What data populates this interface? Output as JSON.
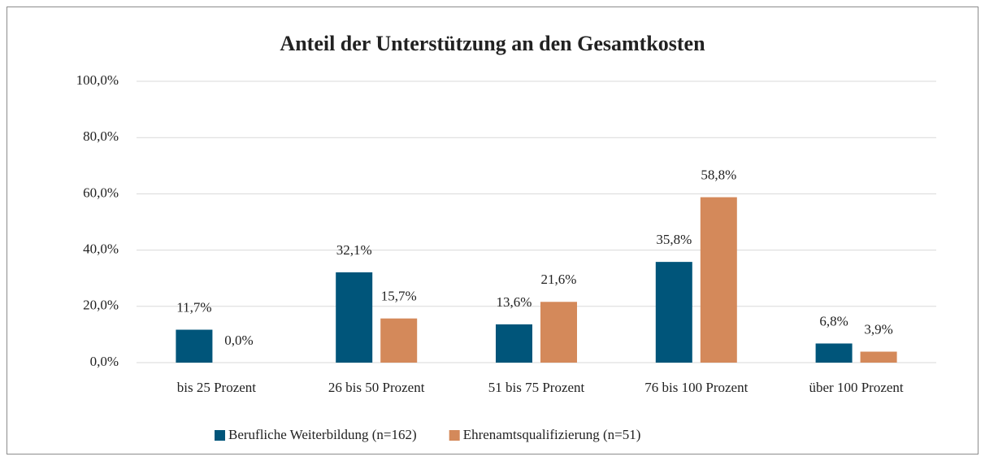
{
  "chart_data": {
    "type": "bar",
    "title": "Anteil der Unterstützung an den Gesamtkosten",
    "categories": [
      "bis 25 Prozent",
      "26 bis 50 Prozent",
      "51 bis 75 Prozent",
      "76 bis 100 Prozent",
      "über 100 Prozent"
    ],
    "series": [
      {
        "name": "Berufliche Weiterbildung (n=162)",
        "color": "#00557a",
        "values": [
          11.7,
          32.1,
          13.6,
          35.8,
          6.8
        ],
        "value_labels": [
          "11,7%",
          "32,1%",
          "13,6%",
          "35,8%",
          "6,8%"
        ]
      },
      {
        "name": "Ehrenamtsqualifizierung (n=51)",
        "color": "#d4895a",
        "values": [
          0.0,
          15.7,
          21.6,
          58.8,
          3.9
        ],
        "value_labels": [
          "0,0%",
          "15,7%",
          "21,6%",
          "58,8%",
          "3,9%"
        ]
      }
    ],
    "ylim": [
      0,
      100
    ],
    "yticks": [
      {
        "value": 0,
        "label": "0,0%"
      },
      {
        "value": 20,
        "label": "20,0%"
      },
      {
        "value": 40,
        "label": "40,0%"
      },
      {
        "value": 60,
        "label": "60,0%"
      },
      {
        "value": 80,
        "label": "80,0%"
      },
      {
        "value": 100,
        "label": "100,0%"
      }
    ],
    "grid": true,
    "legend": "bottom"
  }
}
